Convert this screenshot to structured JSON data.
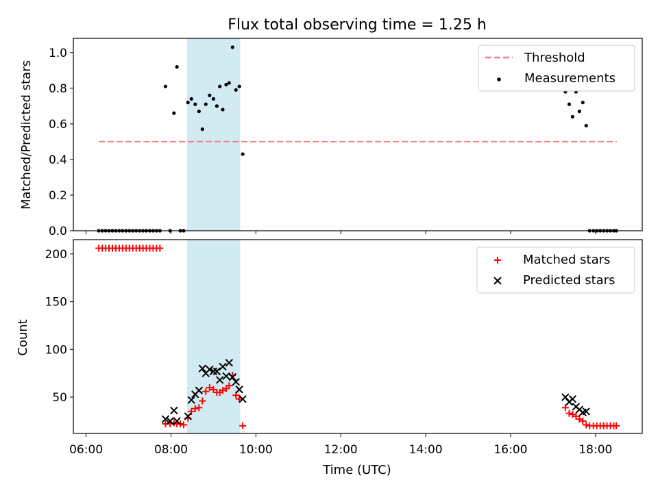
{
  "chart_data": {
    "title": "Flux total observing time = 1.25 h",
    "xlabel": "Time (UTC)",
    "x_ticks": [
      "06:00",
      "08:00",
      "10:00",
      "12:00",
      "14:00",
      "16:00",
      "18:00"
    ],
    "x_tick_values": [
      6,
      8,
      10,
      12,
      14,
      16,
      18
    ],
    "xlim": [
      5.7,
      19.1
    ],
    "shaded_span": [
      8.38,
      9.63
    ],
    "colors": {
      "threshold": "#f08080",
      "measurements": "#000000",
      "matched": "#ff0000",
      "predicted": "#000000",
      "shade": "#add8e6"
    },
    "panels": [
      {
        "type": "scatter",
        "ylabel": "Matched/Predicted stars",
        "ylim": [
          0,
          1.08
        ],
        "y_ticks": [
          "0.0",
          "0.2",
          "0.4",
          "0.6",
          "0.8",
          "1.0"
        ],
        "y_tick_values": [
          0,
          0.2,
          0.4,
          0.6,
          0.8,
          1.0
        ],
        "legend": {
          "position": "top-right",
          "entries": [
            "Threshold",
            "Measurements"
          ]
        },
        "threshold": {
          "name": "Threshold",
          "y": 0.5,
          "x": [
            6.3,
            18.5
          ]
        },
        "series": [
          {
            "name": "Measurements",
            "x": [
              6.3,
              6.38,
              6.46,
              6.54,
              6.62,
              6.7,
              6.78,
              6.86,
              6.94,
              7.02,
              7.1,
              7.18,
              7.26,
              7.34,
              7.42,
              7.5,
              7.58,
              7.66,
              7.74,
              7.87,
              7.98,
              8.07,
              8.14,
              8.22,
              8.3,
              8.4,
              8.48,
              8.57,
              8.66,
              8.74,
              8.82,
              8.91,
              9.0,
              9.08,
              9.15,
              9.22,
              9.3,
              9.37,
              9.45,
              9.53,
              9.61,
              9.69,
              17.29,
              17.38,
              17.46,
              17.54,
              17.62,
              17.7,
              17.78,
              17.86,
              17.95,
              18.03,
              18.11,
              18.19,
              18.27,
              18.35,
              18.43,
              18.49
            ],
            "y": [
              0,
              0,
              0,
              0,
              0,
              0,
              0,
              0,
              0,
              0,
              0,
              0,
              0,
              0,
              0,
              0,
              0,
              0,
              0,
              0.81,
              0,
              0.66,
              0.92,
              0,
              0,
              0.72,
              0.74,
              0.71,
              0.67,
              0.57,
              0.71,
              0.76,
              0.74,
              0.7,
              0.81,
              0.68,
              0.82,
              0.83,
              1.03,
              0.79,
              0.81,
              0.43,
              0.78,
              0.71,
              0.64,
              0.78,
              0.67,
              0.72,
              0.59,
              0,
              0,
              0,
              0,
              0,
              0,
              0,
              0,
              0
            ]
          }
        ]
      },
      {
        "type": "scatter",
        "ylabel": "Count",
        "ylim": [
          12,
          215
        ],
        "y_ticks": [
          "50",
          "100",
          "150",
          "200"
        ],
        "y_tick_values": [
          50,
          100,
          150,
          200
        ],
        "legend": {
          "position": "top-right",
          "entries": [
            "Matched stars",
            "Predicted stars"
          ]
        },
        "series": [
          {
            "name": "Matched stars",
            "marker": "+",
            "x": [
              6.3,
              6.38,
              6.46,
              6.54,
              6.62,
              6.7,
              6.78,
              6.86,
              6.94,
              7.02,
              7.1,
              7.18,
              7.26,
              7.34,
              7.42,
              7.5,
              7.58,
              7.66,
              7.74,
              7.87,
              7.98,
              8.07,
              8.14,
              8.22,
              8.3,
              8.4,
              8.48,
              8.57,
              8.66,
              8.74,
              8.82,
              8.91,
              9.0,
              9.08,
              9.15,
              9.22,
              9.3,
              9.37,
              9.45,
              9.53,
              9.61,
              9.69,
              17.29,
              17.38,
              17.46,
              17.54,
              17.62,
              17.7,
              17.78,
              17.86,
              17.95,
              18.03,
              18.11,
              18.19,
              18.27,
              18.35,
              18.43,
              18.49
            ],
            "y": [
              206,
              206,
              206,
              206,
              206,
              206,
              206,
              206,
              206,
              206,
              206,
              206,
              206,
              206,
              206,
              206,
              206,
              206,
              206,
              22,
              22,
              23,
              22,
              22,
              21,
              28,
              35,
              38,
              39,
              46,
              56,
              60,
              58,
              55,
              55,
              57,
              59,
              62,
              73,
              52,
              48,
              20,
              39,
              33,
              32,
              30,
              27,
              25,
              21,
              20,
              20,
              20,
              20,
              20,
              20,
              20,
              20,
              20
            ]
          },
          {
            "name": "Predicted stars",
            "marker": "x",
            "x": [
              7.87,
              7.98,
              8.07,
              8.14,
              8.4,
              8.48,
              8.57,
              8.66,
              8.74,
              8.82,
              8.91,
              9.0,
              9.08,
              9.15,
              9.22,
              9.3,
              9.37,
              9.45,
              9.53,
              9.61,
              9.69,
              17.29,
              17.38,
              17.46,
              17.54,
              17.62,
              17.7,
              17.78
            ],
            "y": [
              27,
              25,
              36,
              25,
              30,
              47,
              53,
              57,
              80,
              75,
              79,
              77,
              77,
              68,
              82,
              72,
              86,
              71,
              66,
              58,
              48,
              50,
              45,
              48,
              40,
              37,
              34,
              35
            ]
          }
        ]
      }
    ]
  }
}
